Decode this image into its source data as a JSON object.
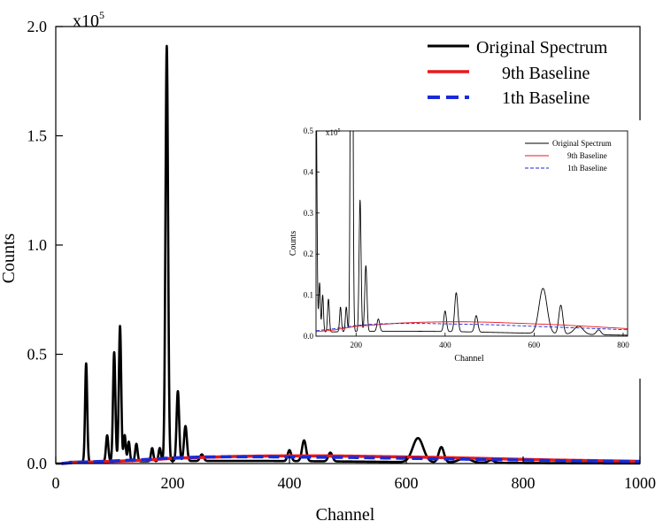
{
  "main_chart": {
    "multiplier_base": "x10",
    "multiplier_exp": "5",
    "xlabel": "Channel",
    "ylabel": "Counts",
    "x_ticks": [
      "0",
      "200",
      "400",
      "600",
      "800",
      "1000"
    ],
    "y_ticks": [
      "0.0",
      "0.5",
      "1.0",
      "1.5",
      "2.0"
    ],
    "legend": [
      {
        "label": "Original Spectrum",
        "color": "#000000",
        "style": "solid"
      },
      {
        "label": "9th Baseline",
        "color": "#e8191d",
        "style": "solid"
      },
      {
        "label": "1th Baseline",
        "color": "#1a2ad8",
        "style": "dashed"
      }
    ]
  },
  "inset_chart": {
    "multiplier_base": "x10",
    "multiplier_exp": "5",
    "xlabel": "Channel",
    "ylabel": "Counts",
    "x_ticks": [
      "200",
      "400",
      "600",
      "800"
    ],
    "y_ticks": [
      "0.0",
      "0.1",
      "0.2",
      "0.3",
      "0.4",
      "0.5"
    ],
    "legend": [
      {
        "label": "Original Spectrum",
        "color": "#000000",
        "style": "solid"
      },
      {
        "label": "9th Baseline",
        "color": "#e8191d",
        "style": "solid"
      },
      {
        "label": "1th Baseline",
        "color": "#1a2ad8",
        "style": "dashed"
      }
    ]
  },
  "chart_data": [
    {
      "type": "line",
      "xlim": [
        0,
        1000
      ],
      "ylim": [
        0,
        200000
      ],
      "grid": false,
      "legend_position": "top-right",
      "baseline_level": 1200,
      "peaks": [
        {
          "x": 52,
          "height": 45000,
          "width": 1.8
        },
        {
          "x": 88,
          "height": 12000,
          "width": 2.0
        },
        {
          "x": 100,
          "height": 50000,
          "width": 2.0
        },
        {
          "x": 110,
          "height": 62000,
          "width": 2.0
        },
        {
          "x": 118,
          "height": 12000,
          "width": 1.8
        },
        {
          "x": 125,
          "height": 9000,
          "width": 1.8
        },
        {
          "x": 138,
          "height": 8000,
          "width": 2.0
        },
        {
          "x": 165,
          "height": 6000,
          "width": 2.0
        },
        {
          "x": 178,
          "height": 6000,
          "width": 2.0
        },
        {
          "x": 190,
          "height": 190000,
          "width": 2.2
        },
        {
          "x": 209,
          "height": 32000,
          "width": 2.2
        },
        {
          "x": 222,
          "height": 16000,
          "width": 2.5
        },
        {
          "x": 250,
          "height": 3000,
          "width": 3.0
        },
        {
          "x": 400,
          "height": 5000,
          "width": 3.0
        },
        {
          "x": 425,
          "height": 9500,
          "width": 3.5
        },
        {
          "x": 470,
          "height": 4000,
          "width": 3.5
        },
        {
          "x": 620,
          "height": 11000,
          "width": 9.0
        },
        {
          "x": 660,
          "height": 7000,
          "width": 4.5
        },
        {
          "x": 700,
          "height": 2000,
          "width": 10.0
        },
        {
          "x": 745,
          "height": 1200,
          "width": 5.0
        }
      ],
      "series": [
        {
          "name": "Original Spectrum",
          "x": [
            0,
            20,
            30,
            40,
            50,
            52,
            55,
            88,
            100,
            110,
            125,
            138,
            165,
            178,
            190,
            195,
            209,
            222,
            250,
            300,
            400,
            425,
            470,
            550,
            620,
            660,
            700,
            745,
            800,
            900,
            1000
          ],
          "y": [
            0,
            0,
            1000,
            1500,
            4000,
            45000,
            4000,
            12000,
            50000,
            62000,
            9000,
            8000,
            6000,
            6000,
            190000,
            8000,
            32000,
            16000,
            3000,
            2500,
            5000,
            9500,
            4000,
            2000,
            11000,
            7000,
            2000,
            1200,
            600,
            400,
            300
          ]
        },
        {
          "name": "9th Baseline",
          "x": [
            10,
            30,
            60,
            100,
            150,
            200,
            250,
            300,
            350,
            400,
            450,
            500,
            550,
            600,
            650,
            700,
            750,
            800,
            850,
            900,
            950,
            1000
          ],
          "y": [
            0,
            500,
            700,
            1000,
            1500,
            2400,
            2800,
            3200,
            3400,
            3500,
            3500,
            3400,
            3200,
            3000,
            2800,
            2500,
            2200,
            1900,
            1600,
            1400,
            1200,
            1000
          ]
        },
        {
          "name": "1th Baseline",
          "x": [
            10,
            30,
            60,
            100,
            150,
            200,
            250,
            300,
            350,
            400,
            450,
            500,
            550,
            600,
            650,
            700,
            750,
            800,
            850,
            900,
            950,
            1000
          ],
          "y": [
            0,
            500,
            800,
            1200,
            1800,
            2600,
            3000,
            3100,
            3100,
            3000,
            2900,
            2800,
            2600,
            2400,
            2200,
            2000,
            1800,
            1600,
            1400,
            1200,
            1050,
            900
          ]
        }
      ]
    },
    {
      "type": "line",
      "xlim": [
        110,
        810
      ],
      "ylim": [
        0,
        50000
      ],
      "grid": false,
      "legend_position": "top-right",
      "clipped_peaks": true,
      "series": [
        {
          "name": "Original Spectrum"
        },
        {
          "name": "9th Baseline"
        },
        {
          "name": "1th Baseline"
        }
      ]
    }
  ]
}
